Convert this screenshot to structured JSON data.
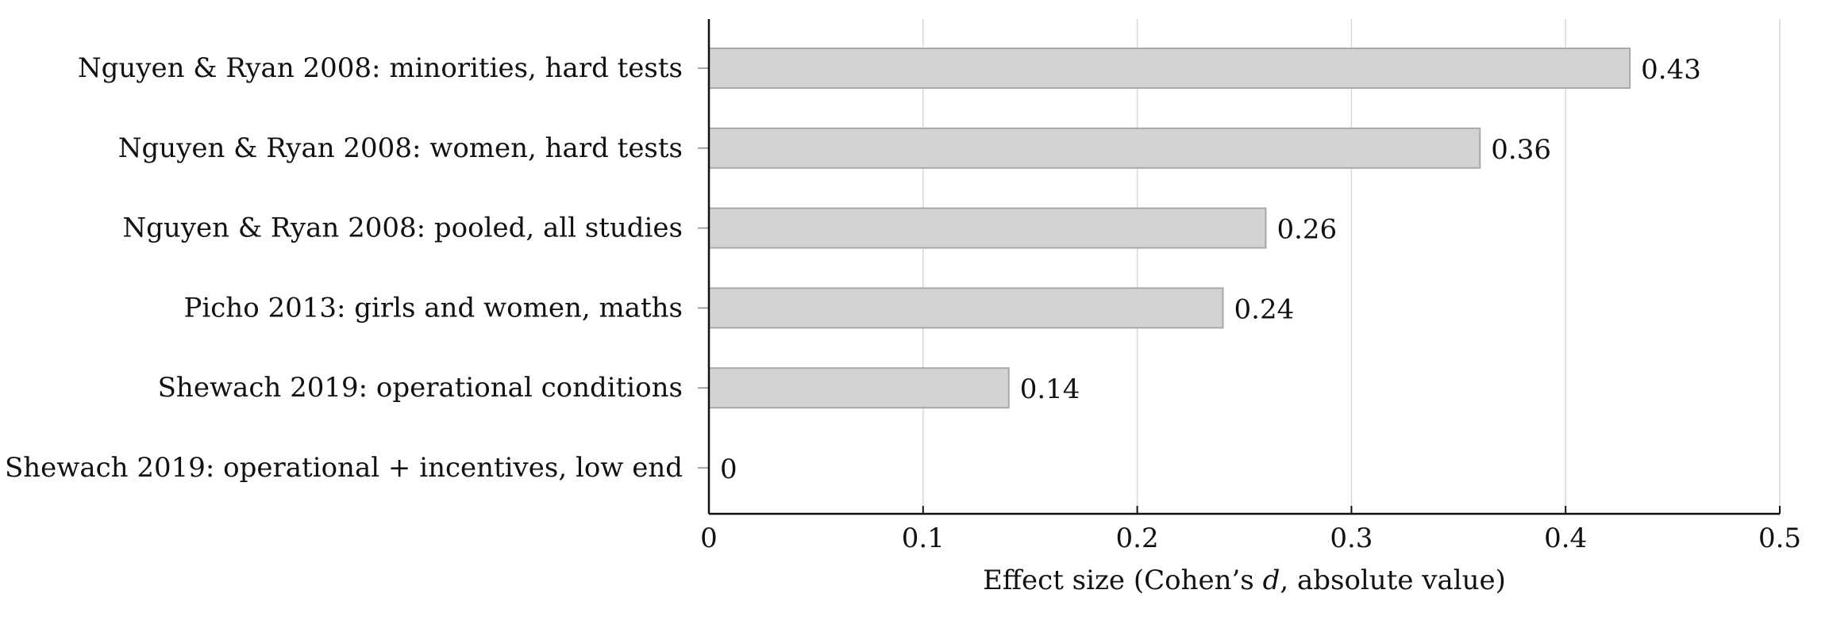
{
  "chart_data": {
    "type": "bar",
    "orientation": "horizontal",
    "categories": [
      "Nguyen & Ryan 2008: minorities, hard tests",
      "Nguyen & Ryan 2008: women, hard tests",
      "Nguyen & Ryan 2008: pooled, all studies",
      "Picho 2013: girls and women, maths",
      "Shewach 2019: operational conditions",
      "Shewach 2019: operational + incentives, low end"
    ],
    "values": [
      0.43,
      0.36,
      0.26,
      0.24,
      0.14,
      0
    ],
    "value_labels": [
      "0.43",
      "0.36",
      "0.26",
      "0.24",
      "0.14",
      "0"
    ],
    "xlabel_prefix": "Effect size (Cohen’s ",
    "xlabel_var": "d",
    "xlabel_suffix": ", absolute value)",
    "ylabel": "",
    "xlim": [
      0,
      0.5
    ],
    "xticks": [
      0,
      0.1,
      0.2,
      0.3,
      0.4,
      0.5
    ],
    "xtick_labels": [
      "0",
      "0.1",
      "0.2",
      "0.3",
      "0.4",
      "0.5"
    ],
    "grid": "vertical",
    "legend": "none",
    "bar_color": "#d3d3d3",
    "bar_edge_color": "#a8a8a8"
  }
}
